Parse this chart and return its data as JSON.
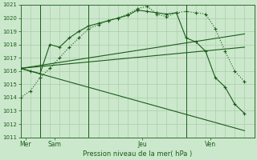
{
  "background_color": "#cce8cc",
  "grid_color": "#aaccaa",
  "line_color": "#1a5c1a",
  "title": "Pression niveau de la mer( hPa )",
  "ylim": [
    1011,
    1021
  ],
  "yticks": [
    1011,
    1012,
    1013,
    1014,
    1015,
    1016,
    1017,
    1018,
    1019,
    1020,
    1021
  ],
  "xlim": [
    0,
    24
  ],
  "day_labels": [
    "Mer",
    "Sam",
    "Jeu",
    "Ven"
  ],
  "day_positions": [
    0.5,
    3.5,
    12.5,
    19.5
  ],
  "day_vlines": [
    2,
    7,
    17
  ],
  "series_dotted": {
    "x": [
      0,
      1,
      2,
      3,
      4,
      5,
      6,
      7,
      8,
      9,
      10,
      11,
      12,
      13,
      14,
      15,
      16,
      17,
      18,
      19,
      20,
      21,
      22,
      23
    ],
    "y": [
      1014.0,
      1014.5,
      1015.5,
      1016.2,
      1017.0,
      1017.8,
      1018.5,
      1019.2,
      1019.5,
      1019.8,
      1020.0,
      1020.3,
      1020.7,
      1020.9,
      1020.3,
      1020.1,
      1020.4,
      1020.5,
      1020.4,
      1020.3,
      1019.2,
      1017.5,
      1016.0,
      1015.2
    ]
  },
  "series_solid": {
    "x": [
      0,
      1,
      2,
      3,
      4,
      5,
      6,
      7,
      8,
      9,
      10,
      11,
      12,
      13,
      14,
      15,
      16,
      17,
      18,
      19,
      20,
      21,
      22,
      23
    ],
    "y": [
      1016.2,
      1016.0,
      1015.8,
      1018.0,
      1017.8,
      1018.5,
      1019.0,
      1019.4,
      1019.6,
      1019.8,
      1020.0,
      1020.2,
      1020.6,
      1020.5,
      1020.4,
      1020.3,
      1020.4,
      1018.5,
      1018.2,
      1017.5,
      1015.5,
      1014.8,
      1013.5,
      1012.8
    ]
  },
  "trend_upper": {
    "x": [
      0,
      23
    ],
    "y": [
      1016.2,
      1018.8
    ]
  },
  "trend_mid": {
    "x": [
      0,
      23
    ],
    "y": [
      1016.2,
      1017.8
    ]
  },
  "trend_lower": {
    "x": [
      0,
      23
    ],
    "y": [
      1016.2,
      1011.5
    ]
  }
}
